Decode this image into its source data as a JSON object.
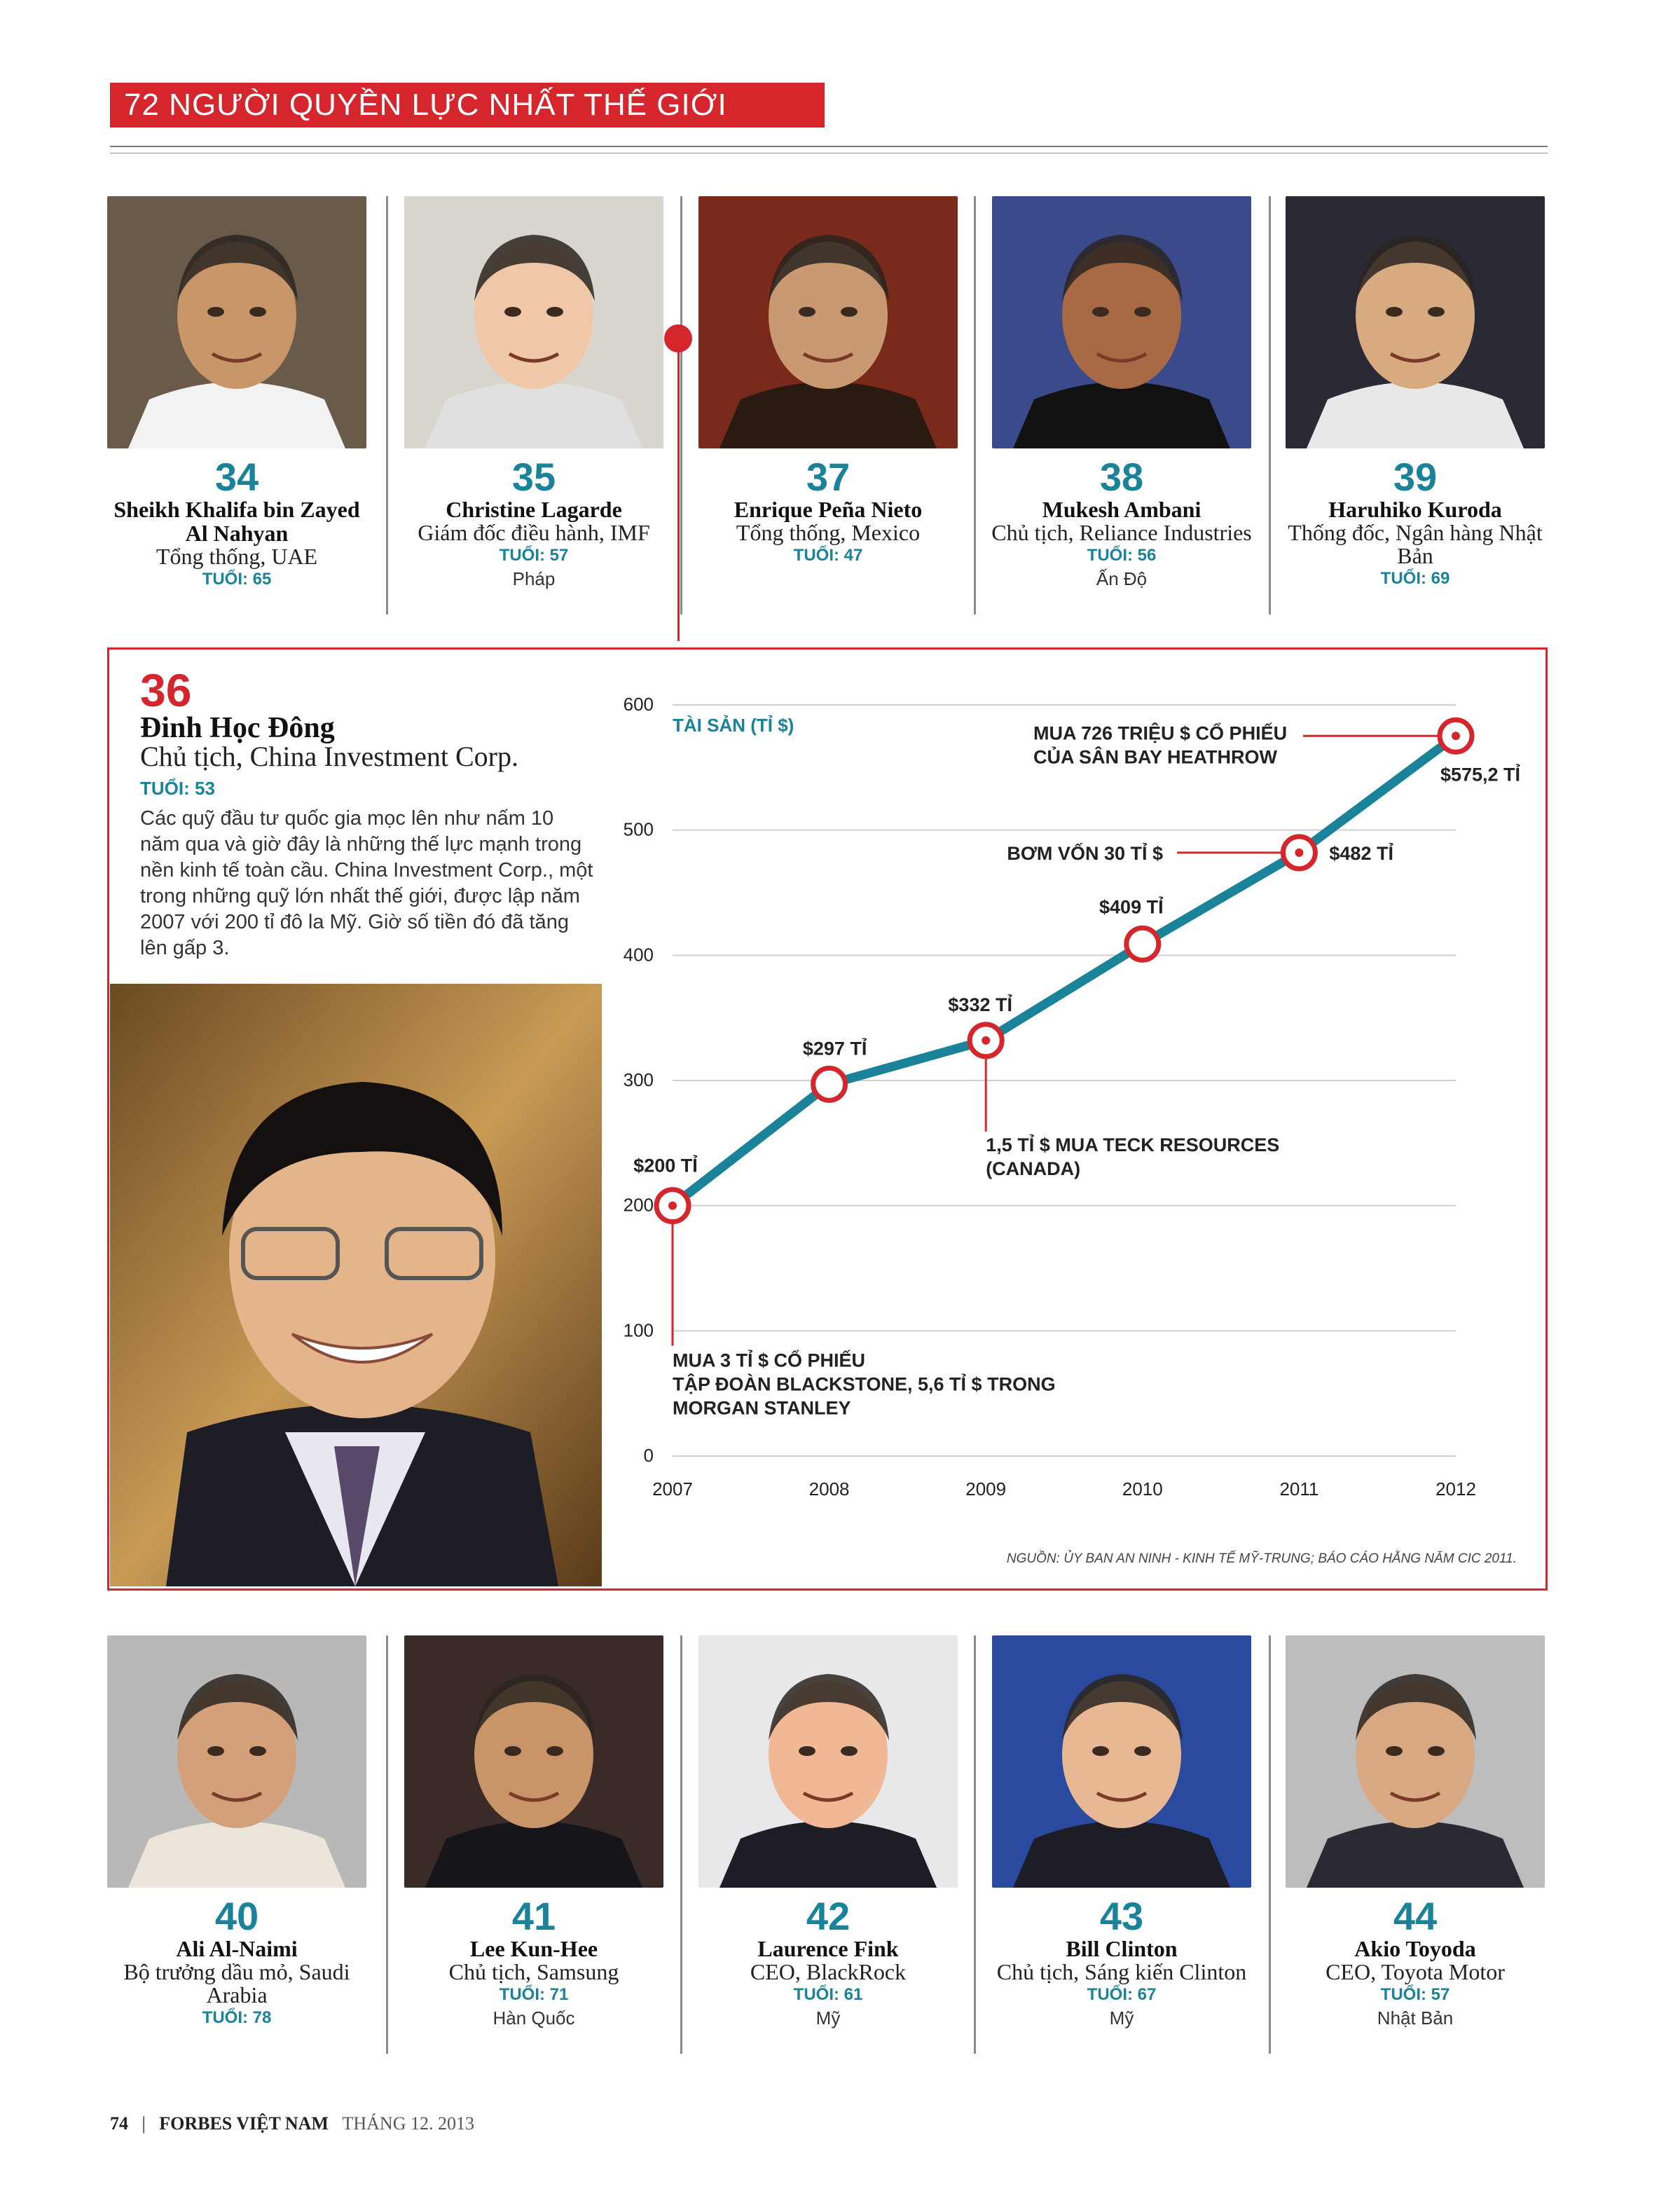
{
  "header": {
    "title": "72 NGƯỜI QUYỀN LỰC NHẤT THẾ GIỚI"
  },
  "top_people": [
    {
      "rank": "34",
      "name": "Sheikh Khalifa bin Zayed Al Nahyan",
      "role": "Tổng thống, UAE",
      "age": "TUỔI: 65",
      "country": ""
    },
    {
      "rank": "35",
      "name": "Christine Lagarde",
      "role": "Giám đốc điều hành, IMF",
      "age": "TUỔI: 57",
      "country": "Pháp"
    },
    {
      "rank": "37",
      "name": "Enrique Peña Nieto",
      "role": "Tổng thống, Mexico",
      "age": "TUỔI: 47",
      "country": ""
    },
    {
      "rank": "38",
      "name": "Mukesh Ambani",
      "role": "Chủ tịch, Reliance Industries",
      "age": "TUỔI: 56",
      "country": "Ấn Độ"
    },
    {
      "rank": "39",
      "name": "Haruhiko Kuroda",
      "role": "Thống đốc, Ngân hàng Nhật Bản",
      "age": "TUỔI: 69",
      "country": ""
    }
  ],
  "feature": {
    "rank": "36",
    "name": "Đinh Học Đông",
    "role": "Chủ tịch, China Investment Corp.",
    "age": "TUỔI: 53",
    "text": "Các quỹ đầu tư quốc gia mọc lên như nấm 10 năm qua và giờ đây là những thế lực mạnh trong nền kinh tế toàn cầu. China Investment Corp., một trong những quỹ lớn nhất thế giới, được lập năm 2007 với 200 tỉ đô la Mỹ. Giờ số tiền đó đã tăng lên gấp 3."
  },
  "chart_data": {
    "type": "line",
    "ylabel": "TÀI SẢN (TỈ $)",
    "x": [
      "2007",
      "2008",
      "2009",
      "2010",
      "2011",
      "2012"
    ],
    "series": [
      {
        "values": [
          200,
          297,
          332,
          409,
          482,
          575.2
        ]
      }
    ],
    "ylim": [
      0,
      600
    ],
    "yticks": [
      "0",
      "100",
      "200",
      "300",
      "400",
      "500",
      "600"
    ],
    "data_labels": [
      "$200 TỈ",
      "$297 TỈ",
      "$332 TỈ",
      "$409 TỈ",
      "$482 TỈ",
      "$575,2 TỈ"
    ],
    "annotations": [
      {
        "x": "2007",
        "lines": [
          "MUA 3 TỈ $ CỔ PHIẾU",
          "TẬP ĐOÀN BLACKSTONE, 5,6 TỈ $ TRONG",
          "MORGAN STANLEY"
        ]
      },
      {
        "x": "2009",
        "lines": [
          "1,5 TỈ $ MUA TECK RESOURCES",
          "(CANADA)"
        ]
      },
      {
        "x": "2011",
        "lines": [
          "BƠM VỐN 30 TỈ $"
        ]
      },
      {
        "x": "2012",
        "lines": [
          "MUA 726 TRIỆU $ CỔ PHIẾU",
          "CỦA SÂN BAY HEATHROW"
        ]
      }
    ],
    "grid": true,
    "source": "NGUỒN: ỦY BAN AN NINH - KINH TẾ MỸ-TRUNG; BÁO CÁO HẰNG NĂM CIC 2011.",
    "colors": {
      "line": "#1b8399",
      "marker": "#d4262c"
    }
  },
  "bottom_people": [
    {
      "rank": "40",
      "name": "Ali Al-Naimi",
      "role": "Bộ trưởng dầu mỏ, Saudi Arabia",
      "age": "TUỔI: 78",
      "country": ""
    },
    {
      "rank": "41",
      "name": "Lee Kun-Hee",
      "role": "Chủ tịch, Samsung",
      "age": "TUỔI: 71",
      "country": "Hàn Quốc"
    },
    {
      "rank": "42",
      "name": "Laurence Fink",
      "role": "CEO, BlackRock",
      "age": "TUỔI: 61",
      "country": "Mỹ"
    },
    {
      "rank": "43",
      "name": "Bill Clinton",
      "role": "Chủ tịch, Sáng kiến Clinton",
      "age": "TUỔI: 67",
      "country": "Mỹ"
    },
    {
      "rank": "44",
      "name": "Akio Toyoda",
      "role": "CEO, Toyota Motor",
      "age": "TUỔI: 57",
      "country": "Nhật Bản"
    }
  ],
  "footer": {
    "page": "74",
    "separator": "|",
    "magazine": "FORBES VIỆT NAM",
    "issue": "THÁNG 12. 2013"
  },
  "colors": {
    "accent_red": "#d4262c",
    "accent_teal": "#1b8399"
  }
}
